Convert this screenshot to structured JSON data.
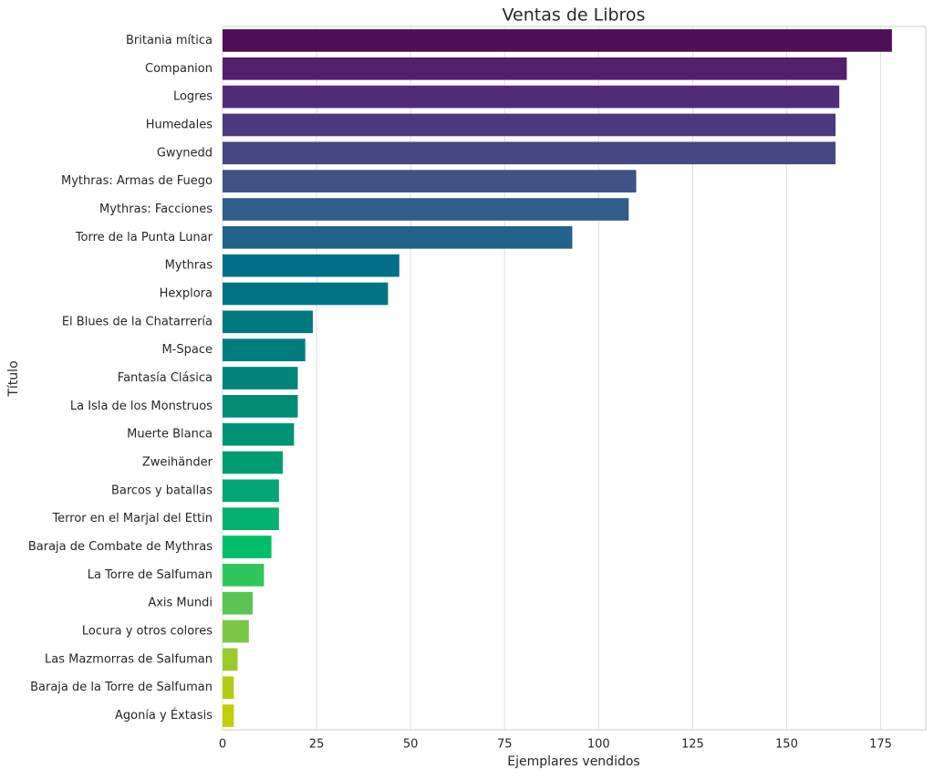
{
  "chart_data": {
    "type": "barh",
    "title": "Ventas de Libros",
    "x_label": "Ejemplares vendidos",
    "y_label": "Título",
    "categories": [
      "Britania mítica",
      "Companion",
      "Logres",
      "Humedales",
      "Gwynedd",
      "Mythras: Armas de Fuego",
      "Mythras: Facciones",
      "Torre de la Punta Lunar",
      "Mythras",
      "Hexplora",
      "El Blues de la Chatarrería",
      "M-Space",
      "Fantasía Clásica",
      "La Isla de los Monstruos",
      "Muerte Blanca",
      "Zweihänder",
      "Barcos y batallas",
      "Terror en el Marjal del Ettin",
      "Baraja de Combate de Mythras",
      "La Torre de Salfuman",
      "Axis Mundi",
      "Locura y otros colores",
      "Las Mazmorras de Salfuman",
      "Baraja de la Torre de Salfuman",
      "Agonía y Éxtasis"
    ],
    "values": [
      178,
      166,
      164,
      163,
      163,
      110,
      108,
      93,
      47,
      44,
      24,
      22,
      20,
      20,
      19,
      16,
      15,
      15,
      13,
      11,
      8,
      7,
      4,
      3,
      3
    ],
    "colors": [
      "#4e0f58",
      "#53206d",
      "#512d79",
      "#4c3a80",
      "#464883",
      "#3e5383",
      "#335e88",
      "#23628a",
      "#006f87",
      "#007383",
      "#00797f",
      "#007e7b",
      "#008578",
      "#008b76",
      "#009274",
      "#009b73",
      "#00a673",
      "#00b26e",
      "#00bd68",
      "#30c65c",
      "#5ac553",
      "#7bc847",
      "#9bca2e",
      "#b3cd14",
      "#c2ce0a"
    ],
    "xlim": [
      0,
      187
    ],
    "xticks": [
      0,
      25,
      50,
      75,
      100,
      125,
      150,
      175
    ],
    "grid": true
  }
}
